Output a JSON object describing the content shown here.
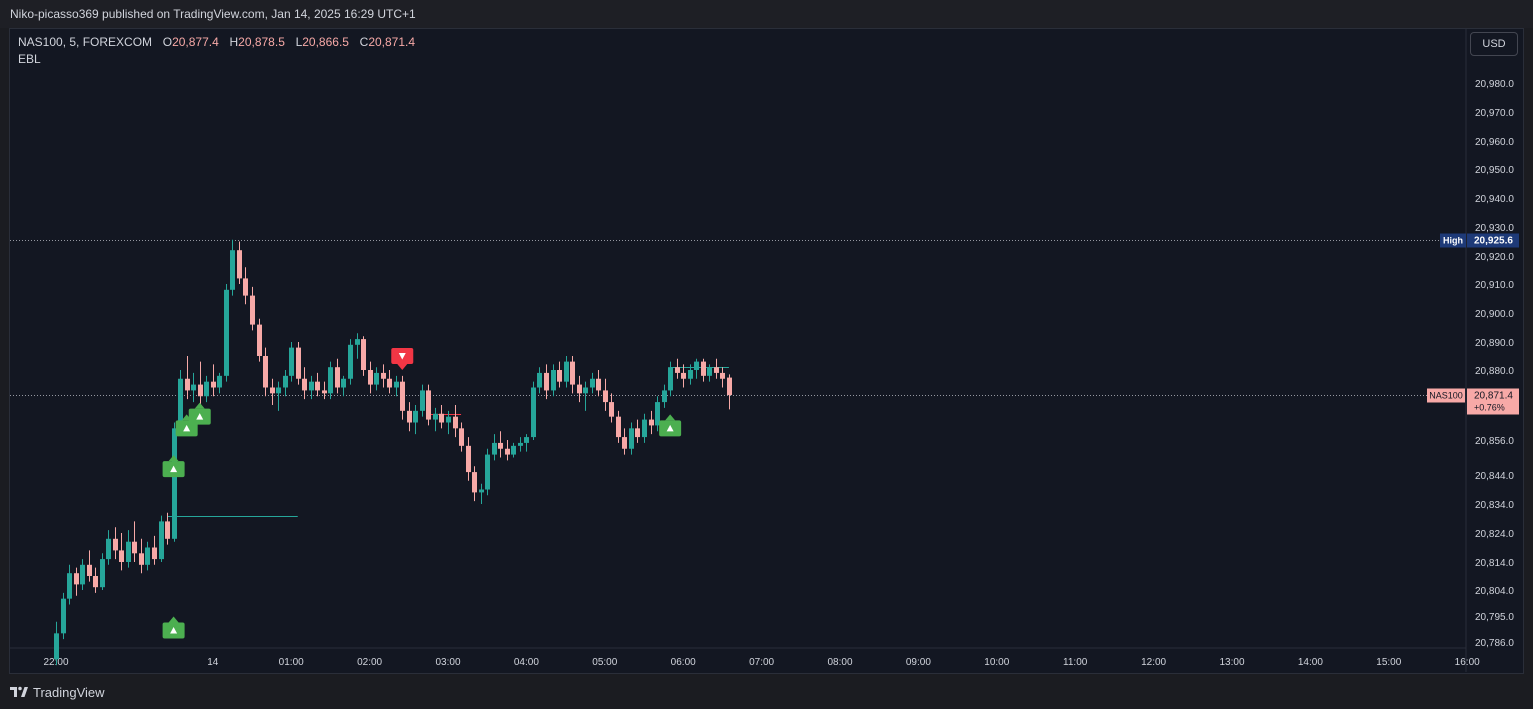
{
  "publication": {
    "text": "Niko-picasso369 published on TradingView.com, Jan 14, 2025 16:29 UTC+1"
  },
  "legend": {
    "symbol": "NAS100, 5, FOREXCOM",
    "o_label": "O",
    "o_value": "20,877.4",
    "h_label": "H",
    "h_value": "20,878.5",
    "l_label": "L",
    "l_value": "20,866.5",
    "c_label": "C",
    "c_value": "20,871.4",
    "indicator": "EBL"
  },
  "currency_button": "USD",
  "footer": {
    "brand": "TradingView",
    "logo_icon": "tradingview-logo-icon"
  },
  "colors": {
    "up": "#26a69a",
    "down": "#f7a9a7",
    "background": "#131722",
    "grid_axis": "#2a2e39",
    "axis_text": "#d1d4dc",
    "signal_buy": "#4caf50",
    "signal_sell": "#f23645",
    "high_label_bg": "#1e3a78",
    "price_label_bg": "#f7a9a7"
  },
  "chart_data": {
    "type": "candlestick",
    "symbol": "NAS100",
    "timeframe": "5",
    "exchange": "FOREXCOM",
    "y_axis": {
      "ticks": [
        20980,
        20970,
        20960,
        20950,
        20940,
        20930,
        20920,
        20910,
        20900,
        20890,
        20880,
        20856,
        20844,
        20834,
        20824,
        20814,
        20804,
        20795,
        20786
      ],
      "tick_labels": [
        "20,980.0",
        "20,970.0",
        "20,960.0",
        "20,950.0",
        "20,940.0",
        "20,930.0",
        "20,920.0",
        "20,910.0",
        "20,900.0",
        "20,890.0",
        "20,880.0",
        "20,856.0",
        "20,844.0",
        "20,834.0",
        "20,824.0",
        "20,814.0",
        "20,804.0",
        "20,795.0",
        "20,786.0"
      ],
      "scale": "nonlinear"
    },
    "x_axis": {
      "tick_labels": [
        "22:00",
        "14",
        "01:00",
        "02:00",
        "03:00",
        "04:00",
        "05:00",
        "06:00",
        "07:00",
        "08:00",
        "09:00",
        "10:00",
        "11:00",
        "12:00",
        "13:00",
        "14:00",
        "15:00",
        "16:00"
      ],
      "tick_times": [
        "01-13 22:00",
        "01-14 00:00",
        "01-14 01:00",
        "01-14 02:00",
        "01-14 03:00",
        "01-14 04:00",
        "01-14 05:00",
        "01-14 06:00",
        "01-14 07:00",
        "01-14 08:00",
        "01-14 09:00",
        "01-14 10:00",
        "01-14 11:00",
        "01-14 12:00",
        "01-14 13:00",
        "01-14 14:00",
        "01-14 15:00",
        "01-14 16:00"
      ],
      "bar_interval_minutes": 5
    },
    "candles": [
      {
        "t": "01-13 22:00",
        "o": 20780,
        "h": 20793,
        "l": 20778,
        "c": 20789
      },
      {
        "t": "01-13 22:05",
        "o": 20789,
        "h": 20803,
        "l": 20787,
        "c": 20801
      },
      {
        "t": "01-13 22:10",
        "o": 20801,
        "h": 20813,
        "l": 20799,
        "c": 20810
      },
      {
        "t": "01-13 22:15",
        "o": 20810,
        "h": 20812,
        "l": 20802,
        "c": 20806
      },
      {
        "t": "01-13 22:20",
        "o": 20806,
        "h": 20815,
        "l": 20804,
        "c": 20813
      },
      {
        "t": "01-13 22:25",
        "o": 20813,
        "h": 20818,
        "l": 20807,
        "c": 20809
      },
      {
        "t": "01-13 22:30",
        "o": 20809,
        "h": 20812,
        "l": 20803,
        "c": 20805
      },
      {
        "t": "01-13 22:35",
        "o": 20805,
        "h": 20817,
        "l": 20804,
        "c": 20815
      },
      {
        "t": "01-13 22:40",
        "o": 20815,
        "h": 20825,
        "l": 20813,
        "c": 20822
      },
      {
        "t": "01-13 22:45",
        "o": 20822,
        "h": 20826,
        "l": 20815,
        "c": 20818
      },
      {
        "t": "01-13 22:50",
        "o": 20818,
        "h": 20824,
        "l": 20811,
        "c": 20814
      },
      {
        "t": "01-13 22:55",
        "o": 20814,
        "h": 20825,
        "l": 20812,
        "c": 20821
      },
      {
        "t": "01-13 23:00",
        "o": 20821,
        "h": 20828,
        "l": 20814,
        "c": 20817
      },
      {
        "t": "01-13 23:05",
        "o": 20817,
        "h": 20822,
        "l": 20810,
        "c": 20813
      },
      {
        "t": "01-13 23:10",
        "o": 20813,
        "h": 20821,
        "l": 20811,
        "c": 20819
      },
      {
        "t": "01-13 23:15",
        "o": 20819,
        "h": 20823,
        "l": 20813,
        "c": 20815
      },
      {
        "t": "01-13 23:20",
        "o": 20815,
        "h": 20830,
        "l": 20814,
        "c": 20828
      },
      {
        "t": "01-13 23:25",
        "o": 20828,
        "h": 20831,
        "l": 20820,
        "c": 20822
      },
      {
        "t": "01-13 23:30",
        "o": 20822,
        "h": 20862,
        "l": 20821,
        "c": 20860
      },
      {
        "t": "01-13 23:35",
        "o": 20860,
        "h": 20880,
        "l": 20858,
        "c": 20877
      },
      {
        "t": "01-13 23:40",
        "o": 20877,
        "h": 20885,
        "l": 20870,
        "c": 20873
      },
      {
        "t": "01-13 23:45",
        "o": 20873,
        "h": 20879,
        "l": 20869,
        "c": 20875
      },
      {
        "t": "01-13 23:50",
        "o": 20875,
        "h": 20883,
        "l": 20867,
        "c": 20871
      },
      {
        "t": "01-13 23:55",
        "o": 20871,
        "h": 20878,
        "l": 20869,
        "c": 20876
      },
      {
        "t": "01-14 00:00",
        "o": 20876,
        "h": 20882,
        "l": 20871,
        "c": 20874
      },
      {
        "t": "01-14 00:05",
        "o": 20874,
        "h": 20879,
        "l": 20872,
        "c": 20878
      },
      {
        "t": "01-14 00:10",
        "o": 20878,
        "h": 20910,
        "l": 20876,
        "c": 20908
      },
      {
        "t": "01-14 00:15",
        "o": 20908,
        "h": 20925.6,
        "l": 20906,
        "c": 20922
      },
      {
        "t": "01-14 00:20",
        "o": 20922,
        "h": 20925,
        "l": 20910,
        "c": 20912
      },
      {
        "t": "01-14 00:25",
        "o": 20912,
        "h": 20916,
        "l": 20903,
        "c": 20906
      },
      {
        "t": "01-14 00:30",
        "o": 20906,
        "h": 20909,
        "l": 20894,
        "c": 20896
      },
      {
        "t": "01-14 00:35",
        "o": 20896,
        "h": 20898,
        "l": 20883,
        "c": 20885
      },
      {
        "t": "01-14 00:40",
        "o": 20885,
        "h": 20888,
        "l": 20871,
        "c": 20874
      },
      {
        "t": "01-14 00:45",
        "o": 20874,
        "h": 20877,
        "l": 20868,
        "c": 20872
      },
      {
        "t": "01-14 00:50",
        "o": 20872,
        "h": 20876,
        "l": 20866,
        "c": 20874
      },
      {
        "t": "01-14 00:55",
        "o": 20874,
        "h": 20880,
        "l": 20871,
        "c": 20878
      },
      {
        "t": "01-14 01:00",
        "o": 20878,
        "h": 20890,
        "l": 20876,
        "c": 20888
      },
      {
        "t": "01-14 01:05",
        "o": 20888,
        "h": 20890,
        "l": 20875,
        "c": 20877
      },
      {
        "t": "01-14 01:10",
        "o": 20877,
        "h": 20881,
        "l": 20870,
        "c": 20873
      },
      {
        "t": "01-14 01:15",
        "o": 20873,
        "h": 20878,
        "l": 20870,
        "c": 20876
      },
      {
        "t": "01-14 01:20",
        "o": 20876,
        "h": 20879,
        "l": 20871,
        "c": 20873
      },
      {
        "t": "01-14 01:25",
        "o": 20873,
        "h": 20876,
        "l": 20870,
        "c": 20872
      },
      {
        "t": "01-14 01:30",
        "o": 20872,
        "h": 20883,
        "l": 20870,
        "c": 20881
      },
      {
        "t": "01-14 01:35",
        "o": 20881,
        "h": 20884,
        "l": 20872,
        "c": 20874
      },
      {
        "t": "01-14 01:40",
        "o": 20874,
        "h": 20878,
        "l": 20871,
        "c": 20877
      },
      {
        "t": "01-14 01:45",
        "o": 20877,
        "h": 20891,
        "l": 20875,
        "c": 20889
      },
      {
        "t": "01-14 01:50",
        "o": 20889,
        "h": 20893,
        "l": 20884,
        "c": 20891
      },
      {
        "t": "01-14 01:55",
        "o": 20891,
        "h": 20892,
        "l": 20878,
        "c": 20880
      },
      {
        "t": "01-14 02:00",
        "o": 20880,
        "h": 20883,
        "l": 20872,
        "c": 20875
      },
      {
        "t": "01-14 02:05",
        "o": 20875,
        "h": 20881,
        "l": 20873,
        "c": 20879
      },
      {
        "t": "01-14 02:10",
        "o": 20879,
        "h": 20882,
        "l": 20874,
        "c": 20877
      },
      {
        "t": "01-14 02:15",
        "o": 20877,
        "h": 20880,
        "l": 20872,
        "c": 20874
      },
      {
        "t": "01-14 02:20",
        "o": 20874,
        "h": 20878,
        "l": 20871,
        "c": 20876
      },
      {
        "t": "01-14 02:25",
        "o": 20876,
        "h": 20878,
        "l": 20863,
        "c": 20866
      },
      {
        "t": "01-14 02:30",
        "o": 20866,
        "h": 20869,
        "l": 20859,
        "c": 20862
      },
      {
        "t": "01-14 02:35",
        "o": 20862,
        "h": 20868,
        "l": 20858,
        "c": 20866
      },
      {
        "t": "01-14 02:40",
        "o": 20866,
        "h": 20875,
        "l": 20864,
        "c": 20873
      },
      {
        "t": "01-14 02:45",
        "o": 20873,
        "h": 20875,
        "l": 20861,
        "c": 20863
      },
      {
        "t": "01-14 02:50",
        "o": 20863,
        "h": 20867,
        "l": 20859,
        "c": 20865
      },
      {
        "t": "01-14 02:55",
        "o": 20865,
        "h": 20868,
        "l": 20860,
        "c": 20862
      },
      {
        "t": "01-14 03:00",
        "o": 20862,
        "h": 20866,
        "l": 20858,
        "c": 20864
      },
      {
        "t": "01-14 03:05",
        "o": 20864,
        "h": 20868,
        "l": 20857,
        "c": 20860
      },
      {
        "t": "01-14 03:10",
        "o": 20860,
        "h": 20862,
        "l": 20852,
        "c": 20854
      },
      {
        "t": "01-14 03:15",
        "o": 20854,
        "h": 20857,
        "l": 20842,
        "c": 20845
      },
      {
        "t": "01-14 03:20",
        "o": 20845,
        "h": 20847,
        "l": 20835,
        "c": 20838
      },
      {
        "t": "01-14 03:25",
        "o": 20838,
        "h": 20841,
        "l": 20834,
        "c": 20839
      },
      {
        "t": "01-14 03:30",
        "o": 20839,
        "h": 20853,
        "l": 20837,
        "c": 20851
      },
      {
        "t": "01-14 03:35",
        "o": 20851,
        "h": 20858,
        "l": 20849,
        "c": 20855
      },
      {
        "t": "01-14 03:40",
        "o": 20855,
        "h": 20859,
        "l": 20850,
        "c": 20853
      },
      {
        "t": "01-14 03:45",
        "o": 20853,
        "h": 20856,
        "l": 20849,
        "c": 20851
      },
      {
        "t": "01-14 03:50",
        "o": 20851,
        "h": 20855,
        "l": 20850,
        "c": 20854
      },
      {
        "t": "01-14 03:55",
        "o": 20854,
        "h": 20857,
        "l": 20852,
        "c": 20855
      },
      {
        "t": "01-14 04:00",
        "o": 20855,
        "h": 20858,
        "l": 20852,
        "c": 20857
      },
      {
        "t": "01-14 04:05",
        "o": 20857,
        "h": 20876,
        "l": 20856,
        "c": 20874
      },
      {
        "t": "01-14 04:10",
        "o": 20874,
        "h": 20881,
        "l": 20872,
        "c": 20879
      },
      {
        "t": "01-14 04:15",
        "o": 20879,
        "h": 20882,
        "l": 20870,
        "c": 20873
      },
      {
        "t": "01-14 04:20",
        "o": 20873,
        "h": 20882,
        "l": 20871,
        "c": 20880
      },
      {
        "t": "01-14 04:25",
        "o": 20880,
        "h": 20883,
        "l": 20874,
        "c": 20876
      },
      {
        "t": "01-14 04:30",
        "o": 20876,
        "h": 20885,
        "l": 20874,
        "c": 20883
      },
      {
        "t": "01-14 04:35",
        "o": 20883,
        "h": 20885,
        "l": 20872,
        "c": 20875
      },
      {
        "t": "01-14 04:40",
        "o": 20875,
        "h": 20878,
        "l": 20869,
        "c": 20872
      },
      {
        "t": "01-14 04:45",
        "o": 20872,
        "h": 20876,
        "l": 20866,
        "c": 20874
      },
      {
        "t": "01-14 04:50",
        "o": 20874,
        "h": 20879,
        "l": 20872,
        "c": 20877
      },
      {
        "t": "01-14 04:55",
        "o": 20877,
        "h": 20880,
        "l": 20871,
        "c": 20873
      },
      {
        "t": "01-14 05:00",
        "o": 20873,
        "h": 20877,
        "l": 20866,
        "c": 20869
      },
      {
        "t": "01-14 05:05",
        "o": 20869,
        "h": 20872,
        "l": 20862,
        "c": 20864
      },
      {
        "t": "01-14 05:10",
        "o": 20864,
        "h": 20866,
        "l": 20855,
        "c": 20857
      },
      {
        "t": "01-14 05:15",
        "o": 20857,
        "h": 20860,
        "l": 20851,
        "c": 20853
      },
      {
        "t": "01-14 05:20",
        "o": 20853,
        "h": 20862,
        "l": 20851,
        "c": 20860
      },
      {
        "t": "01-14 05:25",
        "o": 20860,
        "h": 20863,
        "l": 20855,
        "c": 20857
      },
      {
        "t": "01-14 05:30",
        "o": 20857,
        "h": 20865,
        "l": 20855,
        "c": 20863
      },
      {
        "t": "01-14 05:35",
        "o": 20863,
        "h": 20866,
        "l": 20858,
        "c": 20861
      },
      {
        "t": "01-14 05:40",
        "o": 20861,
        "h": 20871,
        "l": 20859,
        "c": 20869
      },
      {
        "t": "01-14 05:45",
        "o": 20869,
        "h": 20875,
        "l": 20867,
        "c": 20873
      },
      {
        "t": "01-14 05:50",
        "o": 20873,
        "h": 20883,
        "l": 20871,
        "c": 20881
      },
      {
        "t": "01-14 05:55",
        "o": 20881,
        "h": 20884,
        "l": 20877,
        "c": 20879
      },
      {
        "t": "01-14 06:00",
        "o": 20879,
        "h": 20882,
        "l": 20874,
        "c": 20877
      },
      {
        "t": "01-14 06:05",
        "o": 20877,
        "h": 20882,
        "l": 20875,
        "c": 20880
      },
      {
        "t": "01-14 06:10",
        "o": 20880,
        "h": 20884,
        "l": 20877,
        "c": 20883
      },
      {
        "t": "01-14 06:15",
        "o": 20883,
        "h": 20884,
        "l": 20876,
        "c": 20878
      },
      {
        "t": "01-14 06:20",
        "o": 20878,
        "h": 20882,
        "l": 20876,
        "c": 20881
      },
      {
        "t": "01-14 06:25",
        "o": 20881,
        "h": 20884,
        "l": 20877,
        "c": 20879
      },
      {
        "t": "01-14 06:30",
        "o": 20879,
        "h": 20881,
        "l": 20874,
        "c": 20877
      },
      {
        "t": "01-14 06:35",
        "o": 20877.4,
        "h": 20878.5,
        "l": 20866.5,
        "c": 20871.4
      }
    ],
    "horizontal_lines": [
      {
        "kind": "high",
        "price": 20925.6,
        "label": "High",
        "value_label": "20,925.6"
      },
      {
        "kind": "last",
        "price": 20871.4,
        "label": "NAS100",
        "value_label": "20,871.4",
        "change_label": "+0.76%"
      }
    ],
    "level_segments": [
      {
        "price": 20830,
        "from": "01-13 23:25",
        "to": "01-14 01:05",
        "color": "#26a69a"
      },
      {
        "price": 20865,
        "from": "01-14 02:45",
        "to": "01-14 03:10",
        "color": "#f23645"
      },
      {
        "price": 20881,
        "from": "01-14 05:50",
        "to": "01-14 06:35",
        "color": "#26a69a"
      }
    ],
    "signals": [
      {
        "type": "buy",
        "t": "01-13 23:30",
        "price": 20790
      },
      {
        "type": "buy",
        "t": "01-13 23:30",
        "price": 20846
      },
      {
        "type": "buy",
        "t": "01-13 23:40",
        "price": 20860
      },
      {
        "type": "buy",
        "t": "01-13 23:50",
        "price": 20864
      },
      {
        "type": "sell",
        "t": "01-14 02:25",
        "price": 20885
      },
      {
        "type": "buy",
        "t": "01-14 05:50",
        "price": 20860
      }
    ]
  }
}
